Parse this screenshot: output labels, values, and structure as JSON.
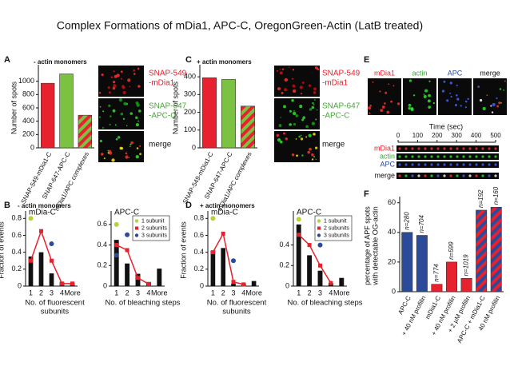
{
  "title": "Complex Formations of mDia1, APC-C, OregonGreen-Actin (LatB treated)",
  "chart_data": [
    {
      "type": "bar",
      "panel": "A",
      "subtitle": "- actin monomers",
      "y_label": [
        "Number of spots"
      ],
      "categories": [
        "SNAP-549-mDia1-C",
        "SNAP-647-APC-C",
        "mDia1/APC complexes"
      ],
      "values": [
        970,
        1110,
        490
      ],
      "colors": [
        "#e8212e",
        "#7cc242",
        "#e8212e"
      ],
      "hatch": [
        false,
        false,
        true
      ],
      "ylim": [
        0,
        1200
      ],
      "yticks": [
        0,
        200,
        400,
        600,
        800,
        1000
      ]
    },
    {
      "type": "bar",
      "panel": "C",
      "subtitle": "+ actin monomers",
      "y_label": [
        "Number of spots"
      ],
      "categories": [
        "SNAP-549-mDia1-C",
        "SNAP-647-APC-C",
        "mDia1/APC complexes"
      ],
      "values": [
        395,
        385,
        235
      ],
      "colors": [
        "#e8212e",
        "#7cc242",
        "#e8212e"
      ],
      "hatch": [
        false,
        false,
        true
      ],
      "ylim": [
        0,
        450
      ],
      "yticks": [
        0,
        100,
        200,
        300,
        400
      ]
    },
    {
      "type": "bar_line",
      "panel": "B",
      "subtitle": "- actin monomers",
      "title": "mDia-C",
      "y_label": [
        "Fraction of events"
      ],
      "x_label": [
        "No. of fluorescent",
        "subunits"
      ],
      "categories": [
        "1",
        "2",
        "3",
        "4",
        "More"
      ],
      "ylim": [
        0,
        0.85
      ],
      "yticks": [
        0,
        0.2,
        0.4,
        0.6,
        0.8
      ],
      "series": [
        {
          "mark": "bar",
          "color": "#111111",
          "values": [
            0.35,
            0.4,
            0.15,
            0.05,
            0.04
          ]
        },
        {
          "mark": "dot",
          "color": "#b5d334",
          "values": [
            0.8,
            null,
            null,
            null,
            null
          ]
        },
        {
          "mark": "line",
          "color": "#e8212e",
          "values": [
            0.3,
            0.65,
            0.3,
            0.03,
            0.03
          ]
        },
        {
          "mark": "dot",
          "color": "#2b4a9a",
          "values": [
            null,
            null,
            0.5,
            null,
            null
          ]
        }
      ]
    },
    {
      "type": "bar_line",
      "title": "APC-C",
      "x_label": [
        "No. of bleaching steps"
      ],
      "categories": [
        "1",
        "2",
        "3",
        "4",
        "More"
      ],
      "ylim": [
        0,
        0.7
      ],
      "yticks": [
        0,
        0.2,
        0.4,
        0.6
      ],
      "legend": "top-right",
      "series": [
        {
          "mark": "bar",
          "color": "#111111",
          "values": [
            0.45,
            0.22,
            0.12,
            0.04,
            0.17
          ]
        },
        {
          "name": "1 subunit",
          "mark": "dot",
          "color": "#b5d334",
          "values": [
            0.6,
            null,
            null,
            null,
            null
          ]
        },
        {
          "name": "2 subunits",
          "mark": "line",
          "color": "#e8212e",
          "values": [
            0.4,
            0.35,
            0.08,
            0.02,
            null
          ]
        },
        {
          "name": "3 subunits",
          "mark": "dot",
          "color": "#2b4a9a",
          "values": [
            0.3,
            0.5,
            null,
            null,
            null
          ]
        }
      ]
    },
    {
      "type": "bar_line",
      "panel": "D",
      "subtitle": "+ actin monomers",
      "title": "mDia-C",
      "y_label": [
        "Fraction of events"
      ],
      "x_label": [
        "No. of fluorescent",
        "subunits"
      ],
      "categories": [
        "1",
        "2",
        "3",
        "4",
        "More"
      ],
      "ylim": [
        0,
        0.85
      ],
      "yticks": [
        0,
        0.2,
        0.4,
        0.6,
        0.8
      ],
      "series": [
        {
          "mark": "bar",
          "color": "#111111",
          "values": [
            0.42,
            0.45,
            0.03,
            0.03,
            0.06
          ]
        },
        {
          "mark": "dot",
          "color": "#b5d334",
          "values": [
            0.8,
            null,
            null,
            null,
            null
          ]
        },
        {
          "mark": "line",
          "color": "#e8212e",
          "values": [
            0.4,
            0.62,
            0.05,
            0.02,
            null
          ]
        },
        {
          "mark": "dot",
          "color": "#2b4a9a",
          "values": [
            null,
            null,
            0.3,
            null,
            null
          ]
        }
      ]
    },
    {
      "type": "bar_line",
      "title": "APC-C",
      "x_label": [
        "No. of bleaching steps"
      ],
      "categories": [
        "1",
        "2",
        "3",
        "4",
        "More"
      ],
      "ylim": [
        0,
        0.7
      ],
      "yticks": [
        0,
        0.2,
        0.4
      ],
      "legend": "top-right",
      "series": [
        {
          "mark": "bar",
          "color": "#111111",
          "values": [
            0.6,
            0.3,
            0.15,
            0.03,
            0.08
          ]
        },
        {
          "name": "1 subunit",
          "mark": "dot",
          "color": "#b5d334",
          "values": [
            0.65,
            null,
            null,
            null,
            null
          ]
        },
        {
          "name": "2 subunits",
          "mark": "line",
          "color": "#e8212e",
          "values": [
            0.5,
            0.4,
            0.2,
            0.03,
            null
          ]
        },
        {
          "name": "3 subunits",
          "mark": "dot",
          "color": "#2b4a9a",
          "values": [
            null,
            null,
            0.4,
            null,
            null
          ]
        }
      ]
    },
    {
      "type": "bar",
      "panel": "F",
      "y_label": [
        "percentage of APF spots",
        "with detectable OG-actin"
      ],
      "categories": [
        "APC-C",
        "+ 40 nM profilin",
        "mDia1-C",
        "+ 40 nM profilin",
        "+ 2 µM profilin",
        "APC-C + mDia1-C",
        "40 nM profilin"
      ],
      "values": [
        40,
        38,
        5,
        20,
        9,
        55,
        57
      ],
      "bar_notes": [
        "n=280",
        "n=704",
        "n=774",
        "n=599",
        "n=1019",
        "n=192",
        "n=160"
      ],
      "colors": [
        "#2b4a9a",
        "#2b4a9a",
        "#e8212e",
        "#e8212e",
        "#e8212e",
        "#2b4a9a",
        "#2b4a9a"
      ],
      "hatch": [
        false,
        false,
        false,
        false,
        false,
        true,
        true
      ],
      "ylim": [
        0,
        62
      ],
      "yticks": [
        0,
        20,
        40,
        60
      ]
    }
  ],
  "images": {
    "a": [
      [
        "SNAP-549",
        "-mDia1"
      ],
      [
        "SNAP-647",
        "-APC-C"
      ],
      [
        "merge"
      ]
    ],
    "c": [
      [
        "SNAP-549",
        "-mDia1"
      ],
      [
        "SNAP-647",
        "-APC-C"
      ],
      [
        "merge"
      ]
    ],
    "e": {
      "panel": "E",
      "channels": [
        "mDia1",
        "actin",
        "APC",
        "merge"
      ],
      "time_label": "Time (sec)",
      "time_lim": [
        0,
        500
      ],
      "time_ticks": [
        0,
        100,
        200,
        300,
        400,
        500
      ],
      "rows": [
        "mDia1",
        "actin",
        "APC",
        "merge"
      ]
    }
  }
}
